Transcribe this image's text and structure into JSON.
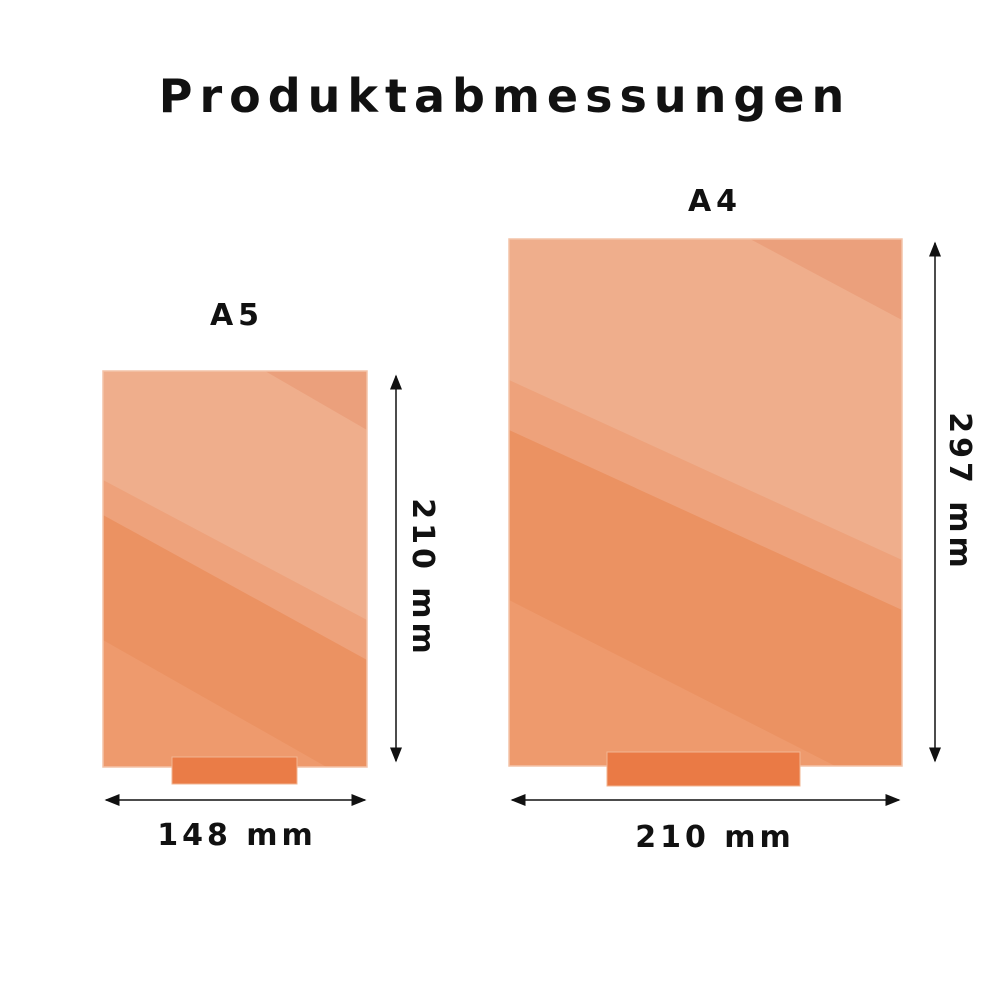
{
  "title": "Produktabmessungen",
  "colors": {
    "panel_light": "#efac8a",
    "panel_dark": "#ec8c5c",
    "stand": "#ea7a45",
    "text": "#111111"
  },
  "products": [
    {
      "label": "A5",
      "width_label": "148 mm",
      "height_label": "210 mm"
    },
    {
      "label": "A4",
      "width_label": "210 mm",
      "height_label": "297 mm"
    }
  ]
}
